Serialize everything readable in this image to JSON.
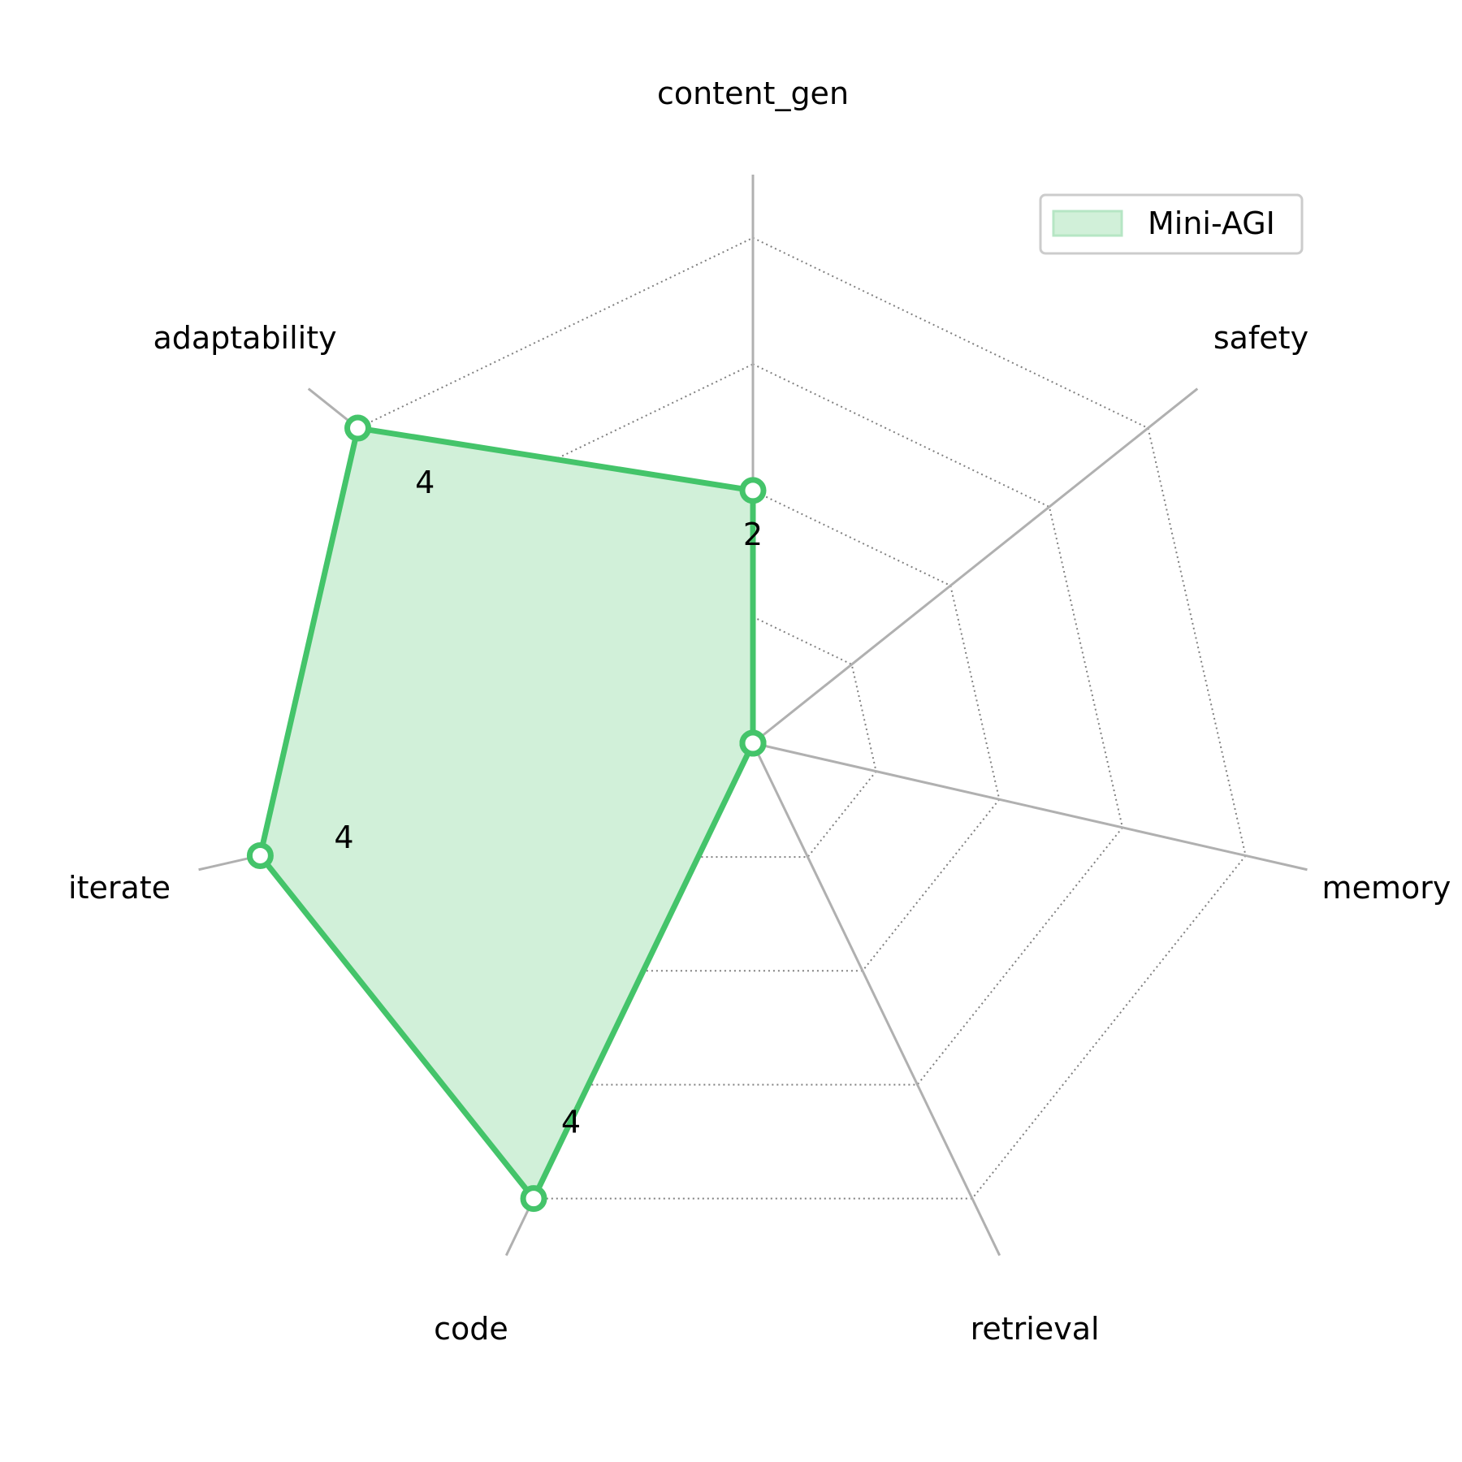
{
  "chart_data": {
    "type": "radar",
    "categories": [
      "content_gen",
      "safety",
      "memory",
      "retrieval",
      "code",
      "iterate",
      "adaptability"
    ],
    "series": [
      {
        "name": "Mini-AGI",
        "values": [
          2,
          0,
          0,
          0,
          4,
          4,
          4
        ],
        "value_labels": [
          "2",
          "",
          "",
          "",
          "4",
          "4",
          "4"
        ],
        "color": "#44c46a",
        "fill": "#d1f0d9"
      }
    ],
    "rlim": [
      0,
      4.5
    ],
    "grid_levels": [
      1,
      2,
      3,
      4
    ],
    "grid": true,
    "legend_position": "top-right",
    "colors": {
      "spoke": "#b0b0b0",
      "grid": "#808080"
    }
  }
}
